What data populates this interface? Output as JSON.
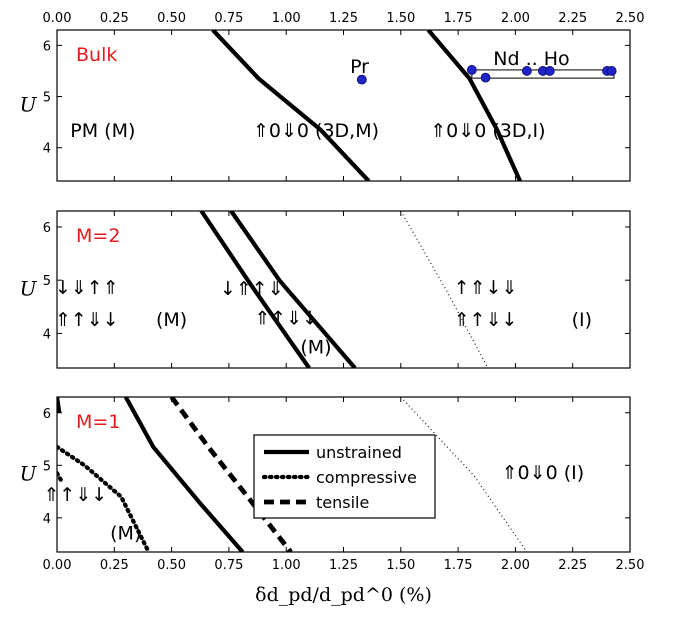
{
  "chart_data": {
    "type": "line",
    "shared_xaxis": {
      "xlabel": "δd_pd/d_pd^0 (%)",
      "xlim": [
        0,
        2.5
      ],
      "ticks": [
        0,
        0.25,
        0.5,
        0.75,
        1.0,
        1.25,
        1.5,
        1.75,
        2.0,
        2.25,
        2.5
      ],
      "tick_labels": [
        "0.00",
        "0.25",
        "0.50",
        "0.75",
        "1.00",
        "1.25",
        "1.50",
        "1.75",
        "2.00",
        "2.25",
        "2.50"
      ]
    },
    "panels": [
      {
        "tag": "Bulk",
        "ylabel": "U",
        "ylim": [
          3.35,
          6.3
        ],
        "yticks": [
          4,
          5,
          6
        ],
        "ytick_labels": [
          "4",
          "5",
          "6"
        ],
        "region_labels": [
          {
            "text": "PM (M)",
            "x": 0.2,
            "y": 4.35
          },
          {
            "text": "⇑0⇓0 (3D,M)",
            "x": 1.13,
            "y": 4.35
          },
          {
            "text": "⇑0⇓0 (3D,I)",
            "x": 1.88,
            "y": 4.35
          },
          {
            "text": "Pr",
            "x": 1.32,
            "y": 5.6
          },
          {
            "text": "Nd .. Ho",
            "x": 2.07,
            "y": 5.75
          }
        ],
        "series": [
          {
            "style": "unstrained",
            "x": [
              0.68,
              0.88,
              1.15,
              1.36
            ],
            "y": [
              6.3,
              5.35,
              4.35,
              3.35
            ]
          },
          {
            "style": "unstrained",
            "x": [
              1.62,
              1.8,
              1.92,
              2.02
            ],
            "y": [
              6.3,
              5.35,
              4.35,
              3.35
            ]
          }
        ],
        "points": [
          {
            "label": "Pr",
            "x": 1.33,
            "y": 5.33
          },
          {
            "label": "Nd .. Ho",
            "x": 1.81,
            "y": 5.52
          },
          {
            "label": "Nd .. Ho",
            "x": 1.87,
            "y": 5.37
          },
          {
            "label": "Nd .. Ho",
            "x": 2.05,
            "y": 5.5
          },
          {
            "label": "Nd .. Ho",
            "x": 2.12,
            "y": 5.5
          },
          {
            "label": "Nd .. Ho",
            "x": 2.15,
            "y": 5.5
          },
          {
            "label": "Nd .. Ho",
            "x": 2.4,
            "y": 5.5
          },
          {
            "label": "Nd .. Ho",
            "x": 2.42,
            "y": 5.5
          }
        ]
      },
      {
        "tag": "M=2",
        "ylabel": "U",
        "ylim": [
          3.35,
          6.3
        ],
        "yticks": [
          4,
          5,
          6
        ],
        "ytick_labels": [
          "4",
          "5",
          "6"
        ],
        "region_labels": [
          {
            "text": "↓⇓↑⇑",
            "x": 0.13,
            "y": 4.87
          },
          {
            "text": "⇑↑⇓↓",
            "x": 0.13,
            "y": 4.27
          },
          {
            "text": "(M)",
            "x": 0.5,
            "y": 4.27
          },
          {
            "text": "↑⇑↓⇓",
            "x": 1.87,
            "y": 4.87
          },
          {
            "text": "⇑↑⇓↓",
            "x": 1.87,
            "y": 4.27
          },
          {
            "text": "(I)",
            "x": 2.29,
            "y": 4.27
          },
          {
            "text": "↓⇑↑⇓",
            "x": 0.85,
            "y": 4.85
          },
          {
            "text": "⇑↑⇓↓",
            "x": 1.0,
            "y": 4.3
          },
          {
            "text": "(M)",
            "x": 1.13,
            "y": 3.75
          }
        ],
        "series": [
          {
            "style": "unstrained",
            "x": [
              0.63,
              0.84,
              1.1
            ],
            "y": [
              6.3,
              4.95,
              3.35
            ]
          },
          {
            "style": "unstrained",
            "x": [
              0.76,
              0.97,
              1.3
            ],
            "y": [
              6.3,
              5.0,
              3.35
            ]
          },
          {
            "style": "thin-dotted",
            "x": [
              0.75,
              1.0,
              1.3
            ],
            "y": [
              6.3,
              4.8,
              3.35
            ]
          },
          {
            "style": "thin-dotted",
            "x": [
              1.5,
              1.7,
              1.88
            ],
            "y": [
              6.3,
              4.8,
              3.35
            ]
          }
        ]
      },
      {
        "tag": "M=1",
        "ylabel": "U",
        "ylim": [
          3.35,
          6.3
        ],
        "yticks": [
          4,
          5,
          6
        ],
        "ytick_labels": [
          "4",
          "5",
          "6"
        ],
        "region_labels": [
          {
            "text": "⇑0⇓0 (I)",
            "x": 2.12,
            "y": 4.87
          },
          {
            "text": "⇑↑⇓↓",
            "x": 0.08,
            "y": 4.45
          },
          {
            "text": "(M)",
            "x": 0.3,
            "y": 3.72
          }
        ],
        "legend": {
          "placement": "center",
          "entries": [
            {
              "label": "unstrained",
              "style": "unstrained"
            },
            {
              "label": "compressive",
              "style": "compressive"
            },
            {
              "label": "tensile",
              "style": "tensile"
            }
          ]
        },
        "series": [
          {
            "style": "unstrained",
            "x": [
              0.0,
              0.01
            ],
            "y": [
              6.3,
              6.0
            ]
          },
          {
            "style": "unstrained",
            "x": [
              0.3,
              0.42,
              0.62,
              0.81
            ],
            "y": [
              6.3,
              5.35,
              4.3,
              3.35
            ]
          },
          {
            "style": "compressive",
            "x": [
              0.0,
              0.12,
              0.28,
              0.4
            ],
            "y": [
              5.35,
              5.0,
              4.4,
              3.35
            ]
          },
          {
            "style": "compressive",
            "x": [
              0.0,
              0.02
            ],
            "y": [
              4.85,
              4.7
            ]
          },
          {
            "style": "tensile",
            "x": [
              0.5,
              0.66,
              0.85,
              1.02
            ],
            "y": [
              6.3,
              5.35,
              4.3,
              3.35
            ]
          },
          {
            "style": "thin-dotted",
            "x": [
              1.5,
              1.82,
              2.05
            ],
            "y": [
              6.3,
              4.8,
              3.35
            ]
          }
        ]
      }
    ]
  }
}
